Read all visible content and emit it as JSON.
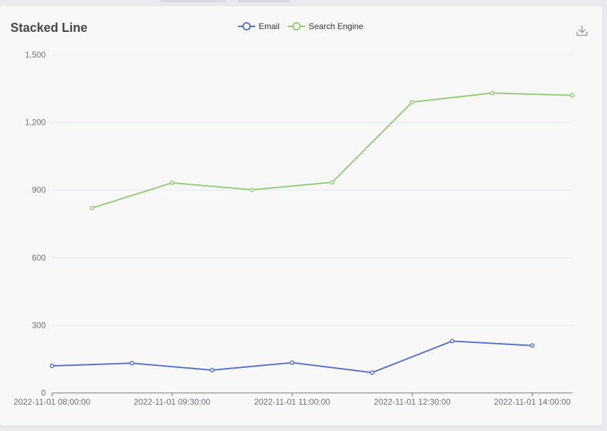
{
  "chart_data": {
    "type": "line",
    "title": "Stacked Line",
    "legend": [
      {
        "name": "Email",
        "color": "#5470c6"
      },
      {
        "name": "Search Engine",
        "color": "#91cc75"
      }
    ],
    "legend_position": "top-center",
    "toolbar": {
      "download_icon": "download-icon"
    },
    "grid": true,
    "yaxis": {
      "ticks": [
        "0",
        "300",
        "600",
        "900",
        "1,200",
        "1,500"
      ],
      "tick_values": [
        0,
        300,
        600,
        900,
        1200,
        1500
      ],
      "ylim": [
        0,
        1500
      ]
    },
    "xaxis": {
      "type": "time",
      "ticks": [
        "2022-11-01 08:00:00",
        "2022-11-01 09:30:00",
        "2022-11-01 11:00:00",
        "2022-11-01 12:30:00",
        "2022-11-01 14:00:00"
      ],
      "tick_values": [
        "2022-11-01 08:00:00",
        "2022-11-01 09:30:00",
        "2022-11-01 11:00:00",
        "2022-11-01 12:30:00",
        "2022-11-01 14:00:00"
      ],
      "xlim": [
        "2022-11-01 08:00:00",
        "2022-11-01 14:30:00"
      ]
    },
    "series": [
      {
        "name": "Email",
        "color": "#5470c6",
        "x": [
          "2022-11-01 08:00:00",
          "2022-11-01 09:00:00",
          "2022-11-01 10:00:00",
          "2022-11-01 11:00:00",
          "2022-11-01 12:00:00",
          "2022-11-01 13:00:00",
          "2022-11-01 14:00:00"
        ],
        "y": [
          120,
          132,
          101,
          134,
          90,
          230,
          210
        ]
      },
      {
        "name": "Search Engine",
        "color": "#91cc75",
        "x": [
          "2022-11-01 08:30:00",
          "2022-11-01 09:30:00",
          "2022-11-01 10:30:00",
          "2022-11-01 11:30:00",
          "2022-11-01 12:30:00",
          "2022-11-01 13:30:00",
          "2022-11-01 14:30:00"
        ],
        "y": [
          820,
          932,
          901,
          934,
          1290,
          1330,
          1320
        ]
      }
    ]
  }
}
